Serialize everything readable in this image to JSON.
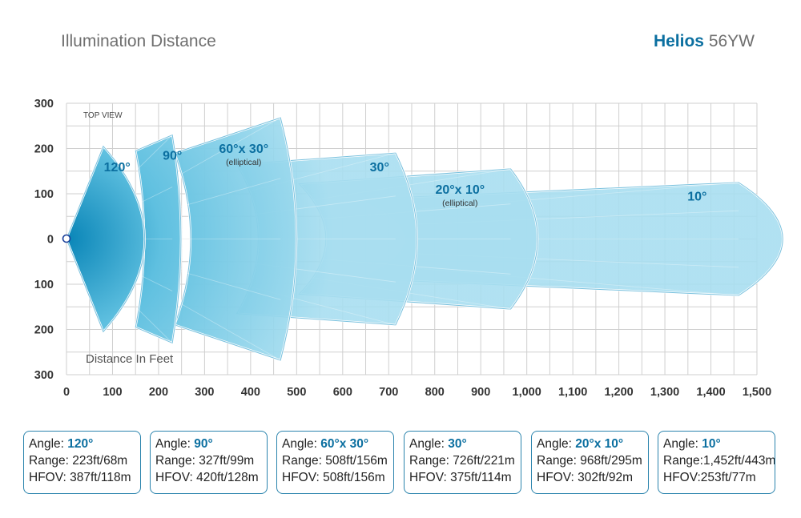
{
  "header": {
    "title": "Illumination Distance",
    "brand_name": "Helios",
    "brand_model": "56YW"
  },
  "chart_data": {
    "type": "area",
    "annotations": [
      "TOP VIEW",
      "Distance In Feet"
    ],
    "xlim": [
      0,
      1500
    ],
    "ylim": [
      -300,
      300
    ],
    "x_ticks": [
      "0",
      "100",
      "200",
      "300",
      "400",
      "500",
      "600",
      "700",
      "800",
      "900",
      "1,000",
      "1,100",
      "1,200",
      "1,300",
      "1,400",
      "1,500"
    ],
    "y_ticks": [
      "300",
      "200",
      "100",
      "0",
      "100",
      "200",
      "300"
    ],
    "grid": true,
    "beams": [
      {
        "label": "120°",
        "note": "",
        "inner": [
          80,
          205
        ],
        "outer": [
          80,
          205
        ],
        "near_x": 80,
        "near_half": 205,
        "far_x": 80,
        "far_half": 205,
        "label_x": 110,
        "label_y": 150
      },
      {
        "label": "90°",
        "note": "",
        "near_x": 150,
        "near_half": 195,
        "far_x": 230,
        "far_half": 230,
        "label_x": 230,
        "label_y": 175
      },
      {
        "label": "60°x 30°",
        "note": "(elliptical)",
        "near_x": 235,
        "near_half": 190,
        "far_x": 465,
        "far_half": 268,
        "label_x": 385,
        "label_y": 190
      },
      {
        "label": "30°",
        "note": "",
        "near_x": 370,
        "near_half": 165,
        "far_x": 715,
        "far_half": 190,
        "label_x": 680,
        "label_y": 150
      },
      {
        "label": "20°x 10°",
        "note": "(elliptical)",
        "near_x": 505,
        "near_half": 122,
        "far_x": 965,
        "far_half": 155,
        "label_x": 855,
        "label_y": 100
      },
      {
        "label": "10°",
        "note": "",
        "near_x": 640,
        "near_half": 88,
        "far_x": 1460,
        "far_half": 125,
        "label_x": 1370,
        "label_y": 85
      }
    ]
  },
  "cards": [
    {
      "angle_label": "Angle: ",
      "angle": "120°",
      "range": "Range: 223ft/68m",
      "hfov": "HFOV: 387ft/118m"
    },
    {
      "angle_label": "Angle: ",
      "angle": "90°",
      "range": "Range: 327ft/99m",
      "hfov": "HFOV: 420ft/128m"
    },
    {
      "angle_label": "Angle: ",
      "angle": "60°x 30°",
      "range": "Range: 508ft/156m",
      "hfov": "HFOV: 508ft/156m"
    },
    {
      "angle_label": "Angle: ",
      "angle": "30°",
      "range": "Range: 726ft/221m",
      "hfov": "HFOV: 375ft/114m"
    },
    {
      "angle_label": "Angle: ",
      "angle": "20°x 10°",
      "range": "Range: 968ft/295m",
      "hfov": "HFOV: 302ft/92m"
    },
    {
      "angle_label": "Angle: ",
      "angle": "10°",
      "range": "Range:1,452ft/443m",
      "hfov": "HFOV:253ft/77m"
    }
  ],
  "colors": {
    "beam_fill": "#8fd3ea",
    "beam_edge": "#1f98c8",
    "grid": "#cfcfcf",
    "accent": "#0b6fa0"
  }
}
